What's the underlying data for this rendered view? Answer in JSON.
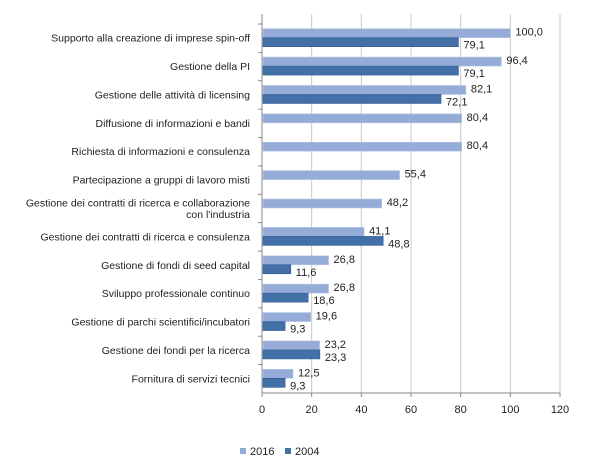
{
  "chart_data": {
    "type": "bar",
    "orientation": "horizontal",
    "categories": [
      "Supporto alla creazione di imprese spin-off",
      "Gestione della PI",
      "Gestione delle attività di licensing",
      "Diffusione di informazioni e bandi",
      "Richiesta di informazioni e consulenza",
      "Partecipazione a gruppi di lavoro misti",
      "Gestione dei contratti di ricerca e collaborazione con l'industria",
      "Gestione dei contratti di ricerca e consulenza",
      "Gestione di fondi di seed capital",
      "Sviluppo professionale continuo",
      "Gestione di parchi scientifici/incubatori",
      "Gestione dei fondi per la ricerca",
      "Fornitura di servizi tecnici"
    ],
    "category_lines": [
      [
        "Supporto alla creazione di imprese spin-off"
      ],
      [
        "Gestione della PI"
      ],
      [
        "Gestione delle attività di licensing"
      ],
      [
        "Diffusione di informazioni e bandi"
      ],
      [
        "Richiesta di informazioni e consulenza"
      ],
      [
        "Partecipazione a gruppi di lavoro misti"
      ],
      [
        "Gestione dei contratti di ricerca e collaborazione con",
        "l'industria"
      ],
      [
        "Gestione dei contratti di ricerca e consulenza"
      ],
      [
        "Gestione di fondi di seed capital"
      ],
      [
        "Sviluppo professionale continuo"
      ],
      [
        "Gestione di parchi scientifici/incubatori"
      ],
      [
        "Gestione dei fondi per la ricerca"
      ],
      [
        "Fornitura di servizi tecnici"
      ]
    ],
    "series": [
      {
        "name": "2016",
        "color": "#95acd8",
        "values": [
          100.0,
          96.4,
          82.1,
          80.4,
          80.4,
          55.4,
          48.2,
          41.1,
          26.8,
          26.8,
          19.6,
          23.2,
          12.5
        ],
        "labels": [
          "100,0",
          "96,4",
          "82,1",
          "80,4",
          "80,4",
          "55,4",
          "48,2",
          "41,1",
          "26,8",
          "26,8",
          "19,6",
          "23,2",
          "12,5"
        ]
      },
      {
        "name": "2004",
        "color": "#4470a8",
        "values": [
          79.1,
          79.1,
          72.1,
          null,
          null,
          null,
          null,
          48.8,
          11.6,
          18.6,
          9.3,
          23.3,
          9.3
        ],
        "labels": [
          "79,1",
          "79,1",
          "72,1",
          null,
          null,
          null,
          null,
          "48,8",
          "11,6",
          "18,6",
          "9,3",
          "23,3",
          "9,3"
        ]
      }
    ],
    "xlim": [
      0,
      120
    ],
    "xticks": [
      0,
      20,
      40,
      60,
      80,
      100,
      120
    ],
    "xtick_labels": [
      "0",
      "20",
      "40",
      "60",
      "80",
      "100",
      "120"
    ],
    "grid": "vertical",
    "legend": "bottom"
  }
}
